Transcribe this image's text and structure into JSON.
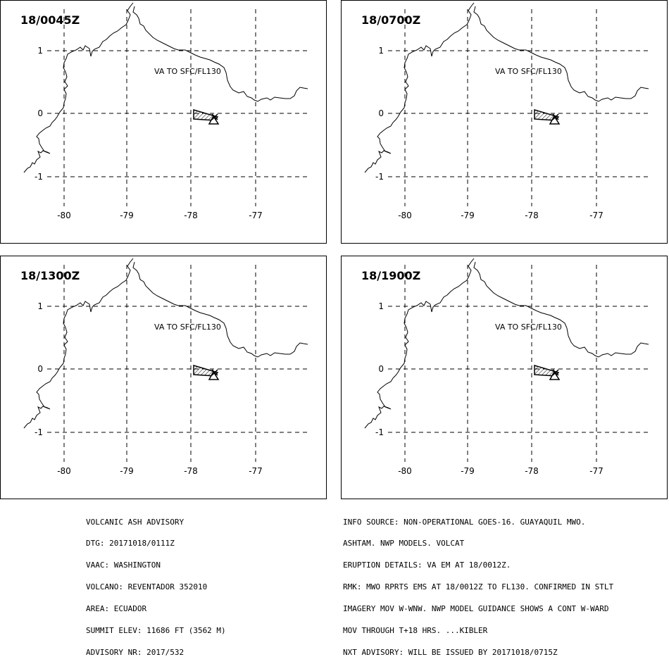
{
  "panels": [
    {
      "time": "18/0045Z",
      "ash_label": "VA TO SFC/FL130"
    },
    {
      "time": "18/0700Z",
      "ash_label": "VA TO SFC/FL130"
    },
    {
      "time": "18/1300Z",
      "ash_label": "VA TO SFC/FL130"
    },
    {
      "time": "18/1900Z",
      "ash_label": "VA TO SFC/FL130"
    }
  ],
  "map": {
    "lon_ticks": [
      "-80",
      "-79",
      "-78",
      "-77"
    ],
    "lat_ticks": [
      "1",
      "0",
      "-1"
    ],
    "grid_style": "dashed"
  },
  "advisory_left": [
    "VOLCANIC ASH ADVISORY",
    "DTG: 20171018/0111Z",
    "VAAC: WASHINGTON",
    "VOLCANO: REVENTADOR 352010",
    "AREA: ECUADOR",
    "SUMMIT ELEV: 11686 FT (3562 M)",
    "ADVISORY NR: 2017/532"
  ],
  "advisory_right": [
    "INFO SOURCE: NON-OPERATIONAL GOES-16. GUAYAQUIL MWO.",
    "ASHTAM. NWP MODELS. VOLCAT",
    "ERUPTION DETAILS: VA EM AT 18/0012Z.",
    "RMK: MWO RPRTS EMS AT 18/0012Z TO FL130. CONFIRMED IN STLT",
    "IMAGERY MOV W-WNW. NWP MODEL GUIDANCE SHOWS A CONT W-WARD",
    "MOV THROUGH T+18 HRS. ...KIBLER",
    "NXT ADVISORY: WILL BE ISSUED BY 20171018/0715Z"
  ],
  "colors": {
    "line": "#000000",
    "background": "#ffffff"
  }
}
